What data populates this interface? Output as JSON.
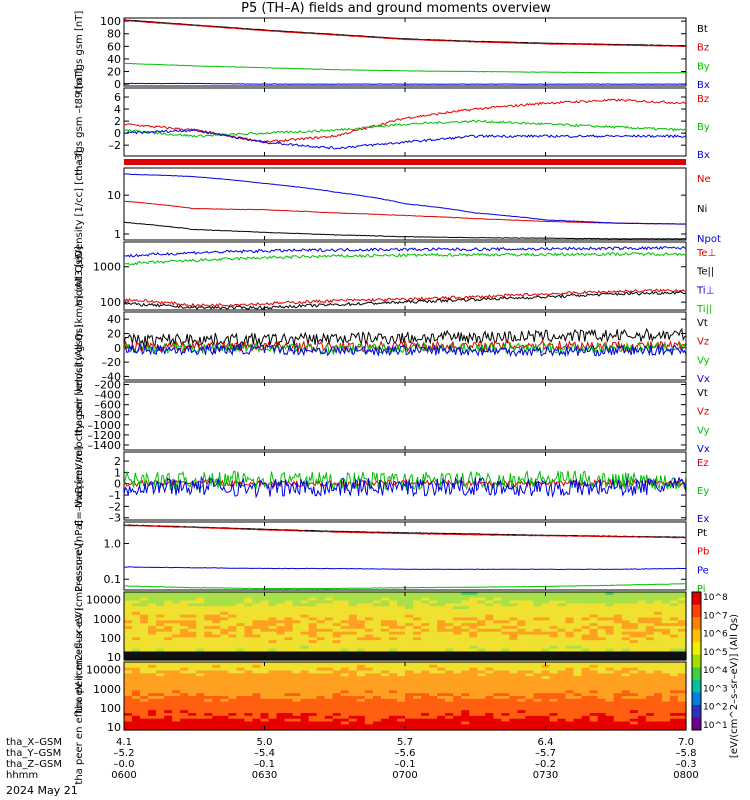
{
  "title": "P5 (TH–A) fields and ground moments overview",
  "date_label": "2024 May 21",
  "colorbar_label": "[eV/(cm^2–s–sr–eV)] (All Qs)",
  "colorbar_ticks": [
    "10^8",
    "10^7",
    "10^6",
    "10^5",
    "10^4",
    "10^3",
    "10^2",
    "10^1"
  ],
  "ephemeris": {
    "rows": [
      {
        "label": "tha_X–GSM",
        "values": [
          "4.1",
          "5.0",
          "5.7",
          "6.4",
          "7.0"
        ]
      },
      {
        "label": "tha_Y–GSM",
        "values": [
          "–5.2",
          "–5.4",
          "–5.6",
          "–5.7",
          "–5.8"
        ]
      },
      {
        "label": "tha_Z–GSM",
        "values": [
          "–0.0",
          "–0.1",
          "–0.1",
          "–0.2",
          "–0.3"
        ]
      },
      {
        "label": "hhmm",
        "values": [
          "0600",
          "0630",
          "0700",
          "0730",
          "0800"
        ]
      }
    ]
  },
  "chart_data": [
    {
      "type": "line",
      "ylabel": "tha fgs gsm [nT]",
      "ylim": [
        -3,
        105
      ],
      "yticks": [
        "100",
        "80",
        "60",
        "40",
        "20",
        "0"
      ],
      "x": [
        "0600",
        "0615",
        "0630",
        "0645",
        "0700",
        "0715",
        "0730",
        "0745",
        "0800"
      ],
      "series": [
        {
          "name": "Bt",
          "color": "#000000",
          "values": [
            102,
            94,
            86,
            79,
            72,
            68,
            65,
            63,
            61
          ]
        },
        {
          "name": "Bz",
          "color": "#e00000",
          "values": [
            101,
            93,
            85,
            78,
            71,
            67,
            64,
            62,
            60
          ]
        },
        {
          "name": "By",
          "color": "#00c000",
          "values": [
            33,
            29,
            26,
            23,
            21,
            20,
            19,
            18,
            18
          ]
        },
        {
          "name": "Bx",
          "color": "#0000e0",
          "values": [
            1,
            1,
            0,
            0,
            0,
            0,
            0,
            0,
            0
          ]
        }
      ]
    },
    {
      "type": "line",
      "ylabel": "tha fgs gsm –t89 [nT]",
      "ylim": [
        -3.8,
        7.5
      ],
      "yticks": [
        "6",
        "4",
        "2",
        "0",
        "–2"
      ],
      "x": [
        "0600",
        "0615",
        "0630",
        "0645",
        "0700",
        "0715",
        "0730",
        "0745",
        "0800"
      ],
      "series": [
        {
          "name": "Bz",
          "color": "#e00000",
          "values": [
            1.5,
            0.5,
            -1.5,
            -0.5,
            2.5,
            4.0,
            5.0,
            5.5,
            5.0
          ]
        },
        {
          "name": "By",
          "color": "#00c000",
          "values": [
            0.5,
            -0.5,
            0.0,
            0.5,
            1.5,
            2.0,
            1.5,
            1.0,
            0.5
          ]
        },
        {
          "name": "Bx",
          "color": "#0000e0",
          "values": [
            0.0,
            0.5,
            -1.5,
            -2.5,
            -1.5,
            -0.5,
            -0.5,
            -0.5,
            -0.5
          ]
        }
      ]
    },
    {
      "type": "line",
      "ylabel": "Density [1/cc] [cm–3]",
      "scale": "log",
      "ylim": [
        0.7,
        50
      ],
      "yticks": [
        "10",
        "1"
      ],
      "x": [
        "0600",
        "0615",
        "0630",
        "0645",
        "0700",
        "0715",
        "0730",
        "0745",
        "0800"
      ],
      "series": [
        {
          "name": "Ne",
          "color": "#e00000",
          "values": [
            7,
            4.5,
            4.2,
            3.5,
            3.0,
            2.5,
            2.1,
            1.9,
            1.8
          ]
        },
        {
          "name": "Ni",
          "color": "#000000",
          "values": [
            2.0,
            1.3,
            1.1,
            0.95,
            0.85,
            0.8,
            0.78,
            0.75,
            0.75
          ]
        },
        {
          "name": "Npot",
          "color": "#0000e0",
          "values": [
            35,
            30,
            20,
            12,
            6,
            3.5,
            2.3,
            1.9,
            1.8
          ]
        }
      ]
    },
    {
      "type": "line",
      "ylabel": "momt3 [eV]",
      "scale": "log",
      "ylim": [
        60,
        5000
      ],
      "yticks": [
        "1000",
        "100"
      ],
      "x": [
        "0600",
        "0615",
        "0630",
        "0645",
        "0700",
        "0715",
        "0730",
        "0745",
        "0800"
      ],
      "series": [
        {
          "name": "Te⊥",
          "color": "#e00000",
          "values": [
            120,
            80,
            90,
            110,
            120,
            140,
            170,
            200,
            220
          ]
        },
        {
          "name": "Te||",
          "color": "#000000",
          "values": [
            90,
            70,
            70,
            85,
            100,
            120,
            140,
            170,
            190
          ]
        },
        {
          "name": "Ti⊥",
          "color": "#0000e0",
          "values": [
            2000,
            2500,
            2800,
            3000,
            3100,
            3100,
            3200,
            3300,
            3400
          ]
        },
        {
          "name": "Ti||",
          "color": "#00c000",
          "values": [
            1200,
            1500,
            1800,
            2000,
            2100,
            2200,
            2200,
            2300,
            2300
          ]
        }
      ]
    },
    {
      "type": "line",
      "ylabel": "tha peir velocity gsm [km/s] (All Qs)",
      "ylim": [
        -45,
        50
      ],
      "yticks": [
        "40",
        "20",
        "0",
        "–20",
        "–40"
      ],
      "x": [
        "0600",
        "0615",
        "0630",
        "0645",
        "0700",
        "0715",
        "0730",
        "0745",
        "0800"
      ],
      "series": [
        {
          "name": "Vt",
          "color": "#000000",
          "values": [
            10,
            12,
            11,
            13,
            14,
            15,
            16,
            17,
            18
          ]
        },
        {
          "name": "Vz",
          "color": "#e00000",
          "values": [
            2,
            3,
            2,
            1,
            3,
            2,
            4,
            3,
            2
          ]
        },
        {
          "name": "Vy",
          "color": "#00c000",
          "values": [
            0,
            -1,
            0,
            -2,
            -1,
            0,
            -1,
            0,
            0
          ]
        },
        {
          "name": "Vx",
          "color": "#0000e0",
          "values": [
            -2,
            -3,
            -2,
            -4,
            -3,
            -4,
            -5,
            -4,
            -3
          ]
        }
      ]
    },
    {
      "type": "line",
      "ylabel": "tha peer velocity gsm [km/s] (All Qs)",
      "ylim": [
        -1500,
        -150
      ],
      "yticks": [
        "–200",
        "–400",
        "–600",
        "–800",
        "–1000",
        "–1200",
        "–1400"
      ],
      "x": [],
      "series": [
        {
          "name": "Vt",
          "color": "#000000",
          "values": []
        },
        {
          "name": "Vz",
          "color": "#e00000",
          "values": []
        },
        {
          "name": "Vy",
          "color": "#00c000",
          "values": []
        },
        {
          "name": "Vx",
          "color": "#0000e0",
          "values": []
        }
      ]
    },
    {
      "type": "line",
      "ylabel": "E=–VxB [mV/m]",
      "ylim": [
        -3.2,
        2.8
      ],
      "yticks": [
        "2",
        "1",
        "0",
        "–1",
        "–2",
        "–3"
      ],
      "x": [
        "0600",
        "0615",
        "0630",
        "0645",
        "0700",
        "0715",
        "0730",
        "0745",
        "0800"
      ],
      "series": [
        {
          "name": "Ez",
          "color": "#e00000",
          "values": [
            0.0,
            0.1,
            0.0,
            0.0,
            0.1,
            0.0,
            0.0,
            0.1,
            0.0
          ]
        },
        {
          "name": "Ey",
          "color": "#00c000",
          "values": [
            0.3,
            0.2,
            0.4,
            0.3,
            0.2,
            0.3,
            0.4,
            0.3,
            0.2
          ]
        },
        {
          "name": "Ex",
          "color": "#0000e0",
          "values": [
            -0.3,
            -0.2,
            -0.4,
            -0.3,
            -0.3,
            -0.2,
            -0.4,
            -0.3,
            -0.2
          ]
        }
      ]
    },
    {
      "type": "line",
      "ylabel": "Pressure [nPa]",
      "scale": "log",
      "ylim": [
        0.05,
        4
      ],
      "yticks": [
        "1.0",
        "0.1"
      ],
      "x": [
        "0600",
        "0615",
        "0630",
        "0645",
        "0700",
        "0715",
        "0730",
        "0745",
        "0800"
      ],
      "series": [
        {
          "name": "Pt",
          "color": "#000000",
          "values": [
            3.3,
            2.9,
            2.5,
            2.2,
            2.0,
            1.85,
            1.7,
            1.6,
            1.5
          ]
        },
        {
          "name": "Pb",
          "color": "#e00000",
          "values": [
            3.2,
            2.8,
            2.4,
            2.1,
            1.9,
            1.75,
            1.65,
            1.55,
            1.45
          ]
        },
        {
          "name": "Pe",
          "color": "#0000e0",
          "values": [
            0.22,
            0.21,
            0.2,
            0.2,
            0.19,
            0.19,
            0.19,
            0.19,
            0.2
          ]
        },
        {
          "name": "Pi",
          "color": "#00c000",
          "values": [
            0.065,
            0.058,
            0.055,
            0.055,
            0.058,
            0.06,
            0.063,
            0.068,
            0.075
          ]
        }
      ]
    },
    {
      "type": "heatmap",
      "ylabel": "tha peir en eflux eV (cm2–s–sr–eV)",
      "scale": "log",
      "ylim": [
        7,
        25000
      ],
      "yticks": [
        "10000",
        "1000",
        "100",
        "10"
      ]
    },
    {
      "type": "heatmap",
      "ylabel": "tha peer en eflux eV (cm2–s–sr–eV)",
      "scale": "log",
      "ylim": [
        7,
        25000
      ],
      "yticks": [
        "10000",
        "1000",
        "100",
        "10"
      ]
    }
  ]
}
